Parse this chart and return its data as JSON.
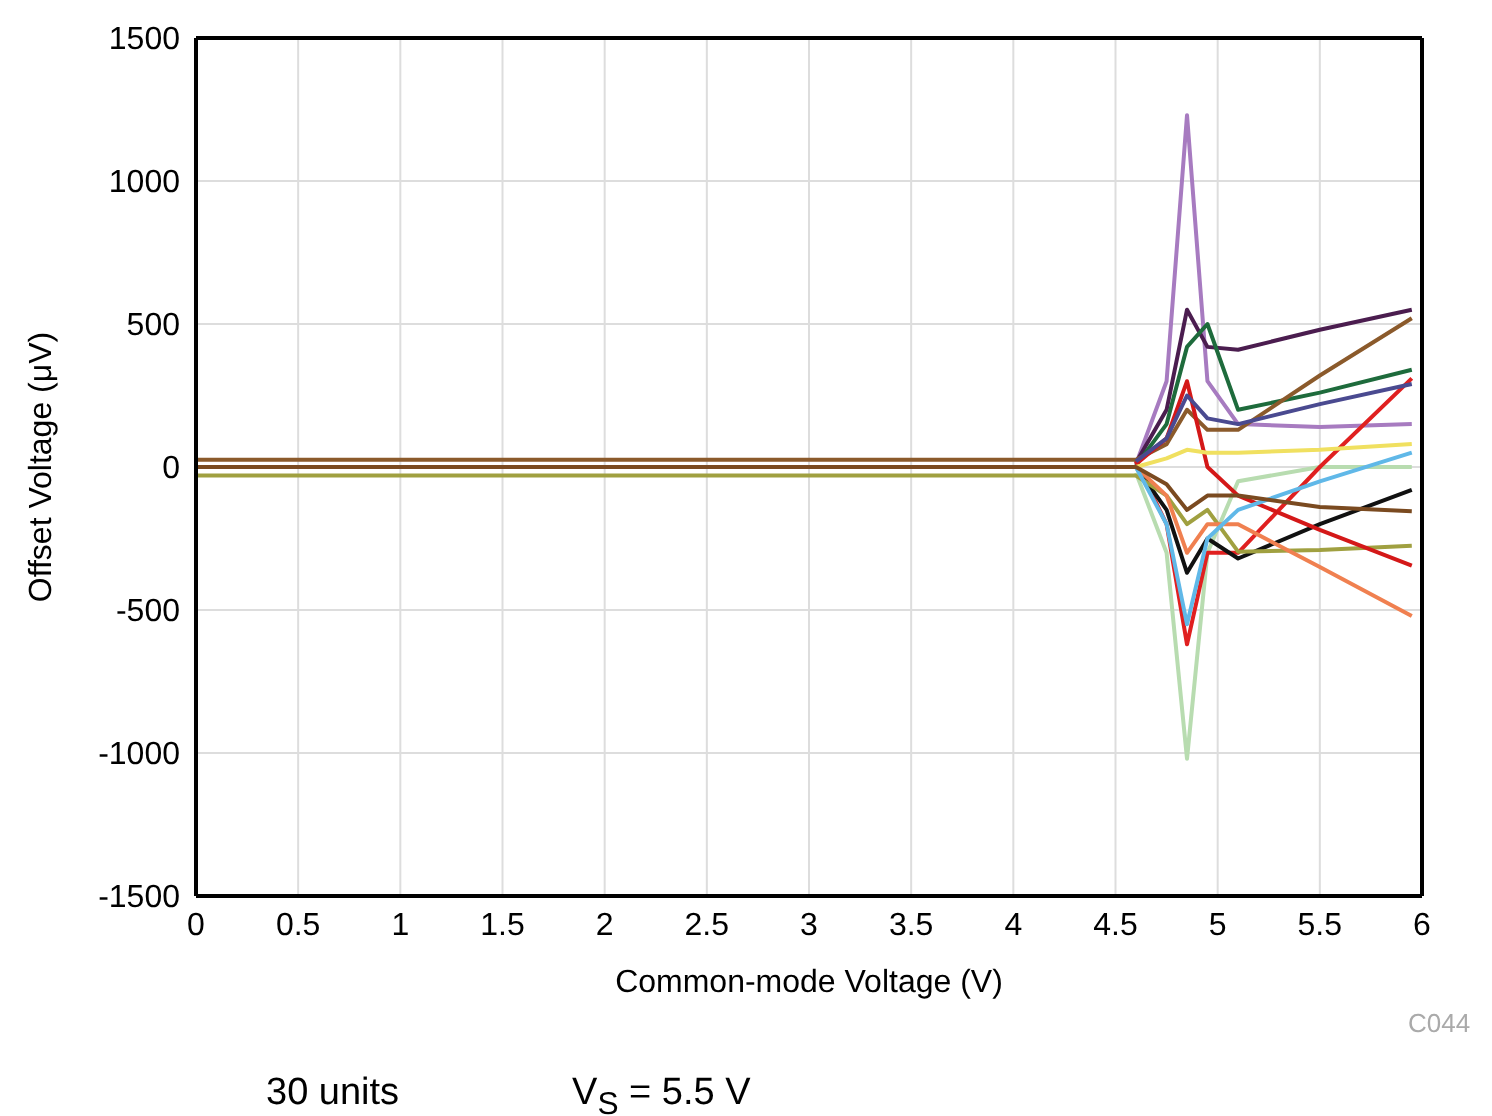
{
  "chart_data": {
    "type": "line",
    "xlabel": "Common-mode Voltage (V)",
    "ylabel": "Offset Voltage (μV)",
    "x": [
      0,
      1,
      2,
      3,
      4,
      4.6,
      4.75,
      4.85,
      4.95,
      5.1,
      5.5,
      5.95
    ],
    "series": [
      {
        "color": "#a77bc0",
        "values": [
          null,
          null,
          null,
          null,
          null,
          10,
          300,
          1230,
          300,
          150,
          140,
          150
        ]
      },
      {
        "color": "#b8dcb0",
        "values": [
          null,
          null,
          null,
          null,
          null,
          -20,
          -300,
          -1020,
          -300,
          -50,
          0,
          0
        ]
      },
      {
        "color": "#4b1d4f",
        "values": [
          null,
          null,
          null,
          null,
          null,
          15,
          200,
          550,
          420,
          410,
          480,
          550
        ]
      },
      {
        "color": "#1e6b3c",
        "values": [
          null,
          null,
          null,
          null,
          null,
          5,
          150,
          420,
          500,
          200,
          260,
          340
        ]
      },
      {
        "color": "#8b5a2b",
        "values": [
          25,
          25,
          25,
          25,
          25,
          25,
          80,
          200,
          130,
          130,
          320,
          520
        ]
      },
      {
        "color": "#e02020",
        "values": [
          null,
          null,
          null,
          null,
          null,
          20,
          -200,
          -620,
          -300,
          -300,
          0,
          310
        ]
      },
      {
        "color": "#111111",
        "values": [
          null,
          null,
          null,
          null,
          null,
          0,
          -150,
          -370,
          -250,
          -320,
          -200,
          -80
        ]
      },
      {
        "color": "#a0a040",
        "values": [
          -30,
          -30,
          -30,
          -30,
          -30,
          -30,
          -100,
          -200,
          -150,
          -296,
          -290,
          -275
        ]
      },
      {
        "color": "#f08050",
        "values": [
          null,
          null,
          null,
          null,
          null,
          0,
          -100,
          -300,
          -200,
          -200,
          -350,
          -521
        ]
      },
      {
        "color": "#d41818",
        "values": [
          null,
          null,
          null,
          null,
          null,
          10,
          100,
          300,
          0,
          -100,
          -220,
          -345
        ]
      },
      {
        "color": "#4a4a90",
        "values": [
          null,
          null,
          null,
          null,
          null,
          20,
          100,
          250,
          170,
          150,
          220,
          290
        ]
      },
      {
        "color": "#60b8e8",
        "values": [
          null,
          null,
          null,
          null,
          null,
          0,
          -200,
          -550,
          -250,
          -150,
          -50,
          50
        ]
      },
      {
        "color": "#f0e060",
        "values": [
          null,
          null,
          null,
          null,
          null,
          0,
          30,
          60,
          50,
          50,
          60,
          80
        ]
      },
      {
        "color": "#7a4a20",
        "values": [
          0,
          0,
          0,
          0,
          0,
          0,
          -60,
          -150,
          -100,
          -100,
          -140,
          -155
        ]
      }
    ],
    "xlim": [
      0,
      6
    ],
    "xticks": [
      0,
      0.5,
      1,
      1.5,
      2,
      2.5,
      3,
      3.5,
      4,
      4.5,
      5,
      5.5,
      6
    ],
    "ylim": [
      -1500,
      1500
    ],
    "yticks": [
      -1500,
      -1000,
      -500,
      0,
      500,
      1000,
      1500
    ],
    "grid": true,
    "annotations": [
      "C044",
      "30 units",
      "V$_{S}$ = 5.5 V"
    ]
  }
}
